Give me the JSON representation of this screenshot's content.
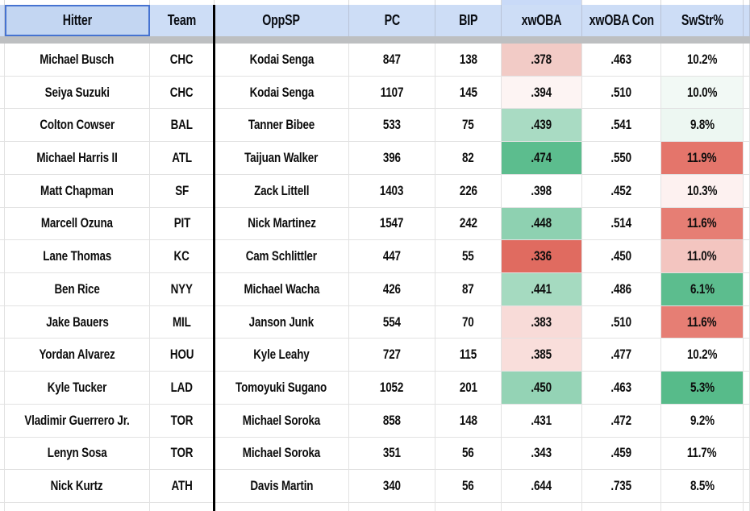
{
  "table": {
    "columns": [
      {
        "key": "hitter",
        "label": "Hitter"
      },
      {
        "key": "team",
        "label": "Team"
      },
      {
        "key": "oppsp",
        "label": "OppSP"
      },
      {
        "key": "pc",
        "label": "PC"
      },
      {
        "key": "bip",
        "label": "BIP"
      },
      {
        "key": "xwoba",
        "label": "xwOBA"
      },
      {
        "key": "xwoba_con",
        "label": "xwOBA Con"
      },
      {
        "key": "swstr",
        "label": "SwStr%"
      }
    ],
    "selected_header": "Hitter",
    "rows": [
      {
        "hitter": "Michael Busch",
        "team": "CHC",
        "oppsp": "Kodai Senga",
        "pc": "847",
        "bip": "138",
        "xwoba": ".378",
        "xwoba_bg": "#f2cbc6",
        "xwoba_con": ".463",
        "swstr": "10.2%",
        "swstr_bg": "#ffffff"
      },
      {
        "hitter": "Seiya Suzuki",
        "team": "CHC",
        "oppsp": "Kodai Senga",
        "pc": "1107",
        "bip": "145",
        "xwoba": ".394",
        "xwoba_bg": "#fdf4f3",
        "xwoba_con": ".510",
        "swstr": "10.0%",
        "swstr_bg": "#f2f9f5"
      },
      {
        "hitter": "Colton Cowser",
        "team": "BAL",
        "oppsp": "Tanner Bibee",
        "pc": "533",
        "bip": "75",
        "xwoba": ".439",
        "xwoba_bg": "#a9dbc3",
        "xwoba_con": ".541",
        "swstr": "9.8%",
        "swstr_bg": "#edf7f2"
      },
      {
        "hitter": "Michael Harris II",
        "team": "ATL",
        "oppsp": "Taijuan Walker",
        "pc": "396",
        "bip": "82",
        "xwoba": ".474",
        "xwoba_bg": "#5cbd8e",
        "xwoba_con": ".550",
        "swstr": "11.9%",
        "swstr_bg": "#e4756b"
      },
      {
        "hitter": "Matt Chapman",
        "team": "SF",
        "oppsp": "Zack Littell",
        "pc": "1403",
        "bip": "226",
        "xwoba": ".398",
        "xwoba_bg": "#ffffff",
        "xwoba_con": ".452",
        "swstr": "10.3%",
        "swstr_bg": "#fdf1f0"
      },
      {
        "hitter": "Marcell Ozuna",
        "team": "PIT",
        "oppsp": "Nick Martinez",
        "pc": "1547",
        "bip": "242",
        "xwoba": ".448",
        "xwoba_bg": "#8ed1b1",
        "xwoba_con": ".514",
        "swstr": "11.6%",
        "swstr_bg": "#e67e74"
      },
      {
        "hitter": "Lane Thomas",
        "team": "KC",
        "oppsp": "Cam Schlittler",
        "pc": "447",
        "bip": "55",
        "xwoba": ".336",
        "xwoba_bg": "#e06b60",
        "xwoba_con": ".450",
        "swstr": "11.0%",
        "swstr_bg": "#f3c5c0"
      },
      {
        "hitter": "Ben Rice",
        "team": "NYY",
        "oppsp": "Michael Wacha",
        "pc": "426",
        "bip": "87",
        "xwoba": ".441",
        "xwoba_bg": "#a5dac0",
        "xwoba_con": ".486",
        "swstr": "6.1%",
        "swstr_bg": "#5cbd8e"
      },
      {
        "hitter": "Jake Bauers",
        "team": "MIL",
        "oppsp": "Janson Junk",
        "pc": "554",
        "bip": "70",
        "xwoba": ".383",
        "xwoba_bg": "#f8dbd8",
        "xwoba_con": ".510",
        "swstr": "11.6%",
        "swstr_bg": "#e67e74"
      },
      {
        "hitter": "Yordan Alvarez",
        "team": "HOU",
        "oppsp": "Kyle Leahy",
        "pc": "727",
        "bip": "115",
        "xwoba": ".385",
        "xwoba_bg": "#f9dedb",
        "xwoba_con": ".477",
        "swstr": "10.2%",
        "swstr_bg": "#ffffff"
      },
      {
        "hitter": "Kyle Tucker",
        "team": "LAD",
        "oppsp": "Tomoyuki Sugano",
        "pc": "1052",
        "bip": "201",
        "xwoba": ".450",
        "xwoba_bg": "#94d3b5",
        "xwoba_con": ".463",
        "swstr": "5.3%",
        "swstr_bg": "#57bb8a"
      },
      {
        "hitter": "Vladimir Guerrero Jr.",
        "team": "TOR",
        "oppsp": "Michael Soroka",
        "pc": "858",
        "bip": "148",
        "xwoba": ".431",
        "xwoba_bg": "#ffffff",
        "xwoba_con": ".472",
        "swstr": "9.2%",
        "swstr_bg": "#ffffff"
      },
      {
        "hitter": "Lenyn Sosa",
        "team": "TOR",
        "oppsp": "Michael Soroka",
        "pc": "351",
        "bip": "56",
        "xwoba": ".343",
        "xwoba_bg": "#ffffff",
        "xwoba_con": ".459",
        "swstr": "11.7%",
        "swstr_bg": "#ffffff"
      },
      {
        "hitter": "Nick Kurtz",
        "team": "ATH",
        "oppsp": "Davis Martin",
        "pc": "340",
        "bip": "56",
        "xwoba": ".644",
        "xwoba_bg": "#ffffff",
        "xwoba_con": ".735",
        "swstr": "8.5%",
        "swstr_bg": "#ffffff"
      }
    ],
    "colors": {
      "header_bg": "#cdddf6",
      "selected_cell_fill": "#c3d6f2",
      "selected_cell_border": "#4673d1",
      "frozen_divider": "#bdbfc1",
      "gridline": "#e2e2e2",
      "column_divider_line": "#000000",
      "format_scale_low": "#e06b60",
      "format_scale_mid": "#ffffff",
      "format_scale_high": "#57bb8a",
      "top_sliver_xwoba_bg": "#c9daf8"
    }
  }
}
